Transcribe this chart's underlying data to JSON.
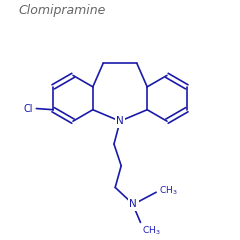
{
  "title": "Clomipramine",
  "line_color": "#1a1aaa",
  "bg_color": "#FFFFFF",
  "title_fontsize": 9,
  "title_style": "italic",
  "title_color": "#666666",
  "line_width": 1.2,
  "label_fontsize": 7.0
}
